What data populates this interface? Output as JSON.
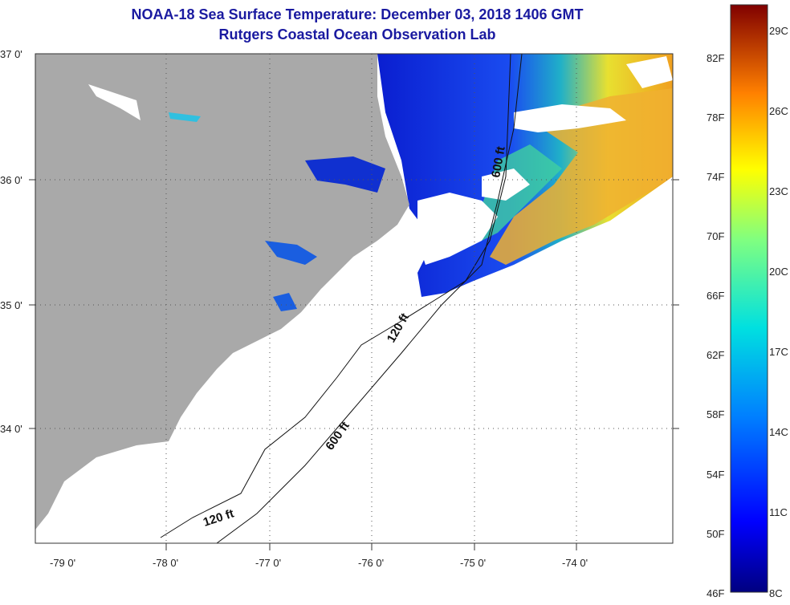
{
  "header": {
    "title": "NOAA-18 Sea Surface Temperature:  December 03, 2018 1406 GMT",
    "subtitle": "Rutgers Coastal Ocean Observation Lab"
  },
  "axes": {
    "lat_labels": [
      "37 0'",
      "36 0'",
      "35 0'",
      "34 0'"
    ],
    "lon_labels": [
      "-79 0'",
      "-78 0'",
      "-77 0'",
      "-76 0'",
      "-75 0'",
      "-74 0'"
    ]
  },
  "isobaths": {
    "label_120": "120 ft",
    "label_600": "600 ft"
  },
  "colorbar": {
    "f_labels": [
      "82F",
      "78F",
      "74F",
      "70F",
      "66F",
      "62F",
      "58F",
      "54F",
      "50F",
      "46F"
    ],
    "c_labels": [
      "29C",
      "26C",
      "23C",
      "20C",
      "17C",
      "14C",
      "11C",
      "8C"
    ]
  },
  "colors": {
    "land": "#a9a9a9",
    "cloud": "#ffffff",
    "cold": "#0a28d8",
    "warm": "#f0a020"
  }
}
